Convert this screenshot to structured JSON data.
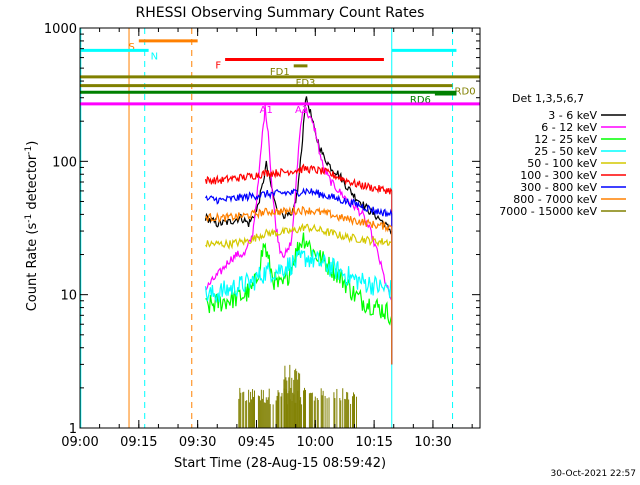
{
  "chart_data": {
    "type": "line",
    "title": "RHESSI Observing Summary Count Rates",
    "xlabel": "Start Time (28-Aug-15 08:59:42)",
    "ylabel_main": "Count Rate (s",
    "ylabel_sup": "-1",
    "ylabel_rest": " detector",
    "ylabel_sup2": "-1",
    "ylabel_end": ")",
    "y_scale": "log",
    "ylim": [
      1,
      1000
    ],
    "xlim_minutes": [
      0,
      102
    ],
    "x_ticks": [
      {
        "m": 0,
        "label": "09:00"
      },
      {
        "m": 15,
        "label": "09:15"
      },
      {
        "m": 30,
        "label": "09:30"
      },
      {
        "m": 45,
        "label": "09:45"
      },
      {
        "m": 60,
        "label": "10:00"
      },
      {
        "m": 75,
        "label": "10:15"
      },
      {
        "m": 90,
        "label": "10:30"
      }
    ],
    "y_ticks": [
      {
        "v": 1,
        "label": "1"
      },
      {
        "v": 10,
        "label": "10"
      },
      {
        "v": 100,
        "label": "100"
      },
      {
        "v": 1000,
        "label": "1000"
      }
    ],
    "legend_title": "Det 1,3,5,6,7",
    "series": [
      {
        "name": "3 - 6 keV",
        "color": "#000000",
        "points": [
          [
            32,
            38
          ],
          [
            35,
            34
          ],
          [
            38,
            35
          ],
          [
            41,
            38
          ],
          [
            43,
            34
          ],
          [
            45,
            42
          ],
          [
            46.5,
            65
          ],
          [
            47.5,
            95
          ],
          [
            48.5,
            70
          ],
          [
            50,
            45
          ],
          [
            52,
            40
          ],
          [
            54,
            38
          ],
          [
            55.5,
            60
          ],
          [
            56.5,
            120
          ],
          [
            57.5,
            300
          ],
          [
            58.5,
            250
          ],
          [
            60,
            160
          ],
          [
            62,
            110
          ],
          [
            64,
            90
          ],
          [
            66,
            80
          ],
          [
            68,
            65
          ],
          [
            70,
            55
          ],
          [
            72,
            48
          ],
          [
            74,
            42
          ],
          [
            76,
            38
          ],
          [
            78,
            33
          ],
          [
            79.5,
            30
          ]
        ]
      },
      {
        "name": "6 - 12 keV",
        "color": "#ff00ff",
        "points": [
          [
            32,
            11
          ],
          [
            34,
            13
          ],
          [
            36,
            15
          ],
          [
            38,
            18
          ],
          [
            40,
            20
          ],
          [
            42,
            20
          ],
          [
            44,
            28
          ],
          [
            45.5,
            70
          ],
          [
            46.5,
            160
          ],
          [
            47.2,
            250
          ],
          [
            48,
            170
          ],
          [
            49,
            60
          ],
          [
            50,
            32
          ],
          [
            51,
            22
          ],
          [
            52,
            20
          ],
          [
            53,
            21
          ],
          [
            54,
            26
          ],
          [
            55,
            60
          ],
          [
            56,
            160
          ],
          [
            57,
            260
          ],
          [
            58,
            230
          ],
          [
            59,
            200
          ],
          [
            60,
            170
          ],
          [
            61,
            120
          ],
          [
            62,
            90
          ],
          [
            64,
            70
          ],
          [
            66,
            60
          ],
          [
            68,
            52
          ],
          [
            70,
            46
          ],
          [
            72,
            40
          ],
          [
            74,
            30
          ],
          [
            76,
            20
          ],
          [
            78,
            12
          ],
          [
            79.5,
            9
          ]
        ]
      },
      {
        "name": "12 - 25 keV",
        "color": "#00ff00",
        "points": [
          [
            32,
            8
          ],
          [
            34,
            8.5
          ],
          [
            36,
            8.8
          ],
          [
            38,
            9.2
          ],
          [
            40,
            9.5
          ],
          [
            42,
            10
          ],
          [
            44,
            11
          ],
          [
            45,
            13
          ],
          [
            46,
            18
          ],
          [
            47,
            24
          ],
          [
            48,
            18
          ],
          [
            49,
            14
          ],
          [
            50,
            12
          ],
          [
            51,
            11.5
          ],
          [
            52,
            12
          ],
          [
            53,
            14
          ],
          [
            54,
            17
          ],
          [
            55,
            20
          ],
          [
            56,
            24
          ],
          [
            57,
            27
          ],
          [
            58,
            25
          ],
          [
            59,
            22
          ],
          [
            60,
            20
          ],
          [
            62,
            18
          ],
          [
            64,
            16
          ],
          [
            66,
            14
          ],
          [
            68,
            12
          ],
          [
            70,
            10
          ],
          [
            72,
            9
          ],
          [
            74,
            8.5
          ],
          [
            76,
            8
          ],
          [
            78,
            7.5
          ],
          [
            79.5,
            7
          ]
        ]
      },
      {
        "name": "25 - 50 keV",
        "color": "#00ffff",
        "points": [
          [
            32,
            10
          ],
          [
            34,
            10
          ],
          [
            36,
            10.5
          ],
          [
            38,
            11
          ],
          [
            40,
            11.5
          ],
          [
            42,
            12
          ],
          [
            44,
            12.5
          ],
          [
            46,
            14
          ],
          [
            48,
            15
          ],
          [
            50,
            15
          ],
          [
            52,
            16
          ],
          [
            54,
            17
          ],
          [
            56,
            18
          ],
          [
            57,
            19
          ],
          [
            58,
            19
          ],
          [
            60,
            18
          ],
          [
            62,
            17
          ],
          [
            64,
            16
          ],
          [
            66,
            15
          ],
          [
            68,
            14
          ],
          [
            70,
            13
          ],
          [
            72,
            12.5
          ],
          [
            74,
            12
          ],
          [
            76,
            11.5
          ],
          [
            78,
            11
          ],
          [
            79.5,
            11
          ]
        ]
      },
      {
        "name": "50 - 100 keV",
        "color": "#d4c800",
        "points": [
          [
            32,
            24
          ],
          [
            34,
            24
          ],
          [
            36,
            24
          ],
          [
            38,
            24
          ],
          [
            40,
            24.5
          ],
          [
            42,
            25
          ],
          [
            44,
            26
          ],
          [
            46,
            28
          ],
          [
            48,
            29
          ],
          [
            50,
            29
          ],
          [
            52,
            29.5
          ],
          [
            54,
            30
          ],
          [
            56,
            31
          ],
          [
            57,
            32
          ],
          [
            58,
            32
          ],
          [
            60,
            31
          ],
          [
            62,
            30
          ],
          [
            64,
            29
          ],
          [
            66,
            28
          ],
          [
            68,
            27
          ],
          [
            70,
            26.5
          ],
          [
            72,
            26
          ],
          [
            74,
            25.5
          ],
          [
            76,
            25
          ],
          [
            78,
            25
          ],
          [
            79.5,
            24.5
          ]
        ]
      },
      {
        "name": "100 - 300 keV",
        "color": "#ff0000",
        "points": [
          [
            32,
            72
          ],
          [
            34,
            72
          ],
          [
            36,
            72
          ],
          [
            38,
            74
          ],
          [
            40,
            75
          ],
          [
            42,
            76
          ],
          [
            44,
            78
          ],
          [
            46,
            80
          ],
          [
            48,
            82
          ],
          [
            50,
            82
          ],
          [
            52,
            83
          ],
          [
            54,
            85
          ],
          [
            56,
            86
          ],
          [
            57,
            88
          ],
          [
            58,
            88
          ],
          [
            60,
            86
          ],
          [
            62,
            84
          ],
          [
            64,
            80
          ],
          [
            66,
            76
          ],
          [
            68,
            72
          ],
          [
            70,
            68
          ],
          [
            72,
            66
          ],
          [
            74,
            64
          ],
          [
            76,
            62
          ],
          [
            78,
            61
          ],
          [
            79.5,
            60
          ]
        ]
      },
      {
        "name": "300 - 800 keV",
        "color": "#0000ff",
        "points": [
          [
            32,
            52
          ],
          [
            34,
            52
          ],
          [
            36,
            51
          ],
          [
            38,
            52
          ],
          [
            40,
            53
          ],
          [
            42,
            54
          ],
          [
            44,
            55
          ],
          [
            46,
            56
          ],
          [
            48,
            57
          ],
          [
            50,
            57
          ],
          [
            52,
            58
          ],
          [
            54,
            58
          ],
          [
            56,
            59
          ],
          [
            57,
            60
          ],
          [
            58,
            60
          ],
          [
            60,
            58
          ],
          [
            62,
            56
          ],
          [
            64,
            54
          ],
          [
            66,
            52
          ],
          [
            68,
            50
          ],
          [
            70,
            48
          ],
          [
            72,
            46
          ],
          [
            74,
            44
          ],
          [
            76,
            42
          ],
          [
            78,
            41
          ],
          [
            79.5,
            40
          ]
        ]
      },
      {
        "name": "800 - 7000 keV",
        "color": "#ff8000",
        "points": [
          [
            32,
            38
          ],
          [
            34,
            38
          ],
          [
            36,
            37.5
          ],
          [
            38,
            38
          ],
          [
            40,
            38.5
          ],
          [
            42,
            39
          ],
          [
            44,
            40
          ],
          [
            46,
            41
          ],
          [
            48,
            42
          ],
          [
            50,
            42
          ],
          [
            52,
            42
          ],
          [
            54,
            42.5
          ],
          [
            56,
            43
          ],
          [
            57,
            43
          ],
          [
            58,
            43
          ],
          [
            60,
            42
          ],
          [
            62,
            41
          ],
          [
            64,
            40
          ],
          [
            66,
            38
          ],
          [
            68,
            37
          ],
          [
            70,
            36
          ],
          [
            72,
            35
          ],
          [
            74,
            34
          ],
          [
            76,
            33
          ],
          [
            78,
            32.5
          ],
          [
            79.5,
            32
          ]
        ]
      },
      {
        "name": "7000 - 15000 keV",
        "color": "#808000",
        "points": []
      }
    ],
    "olive_bursts": [
      {
        "x0": 40.5,
        "x1": 70.5,
        "lo": 1.0,
        "hi": 2.0
      },
      {
        "x0": 52,
        "x1": 56,
        "lo": 1.0,
        "hi": 3.0
      }
    ],
    "flag_bars": [
      {
        "label": "S",
        "color": "#ff8000",
        "x0": 15,
        "x1": 30,
        "y": 800,
        "label_side": "left"
      },
      {
        "label": "N",
        "color": "#00ffff",
        "x0": 0,
        "x1": 17.5,
        "y": 680,
        "label_side": "right"
      },
      {
        "label": "N",
        "color": "#00ffff",
        "x0": 79.5,
        "x1": 96,
        "y": 680,
        "label_side": "none"
      },
      {
        "label": "F",
        "color": "#ff0000",
        "x0": 37,
        "x1": 77.5,
        "y": 580,
        "label_side": "left"
      },
      {
        "label": "FD1",
        "color": "#808000",
        "x0": 54.5,
        "x1": 58,
        "y": 520,
        "label_side": "left"
      },
      {
        "label": "FD3",
        "color": "#808000",
        "x0": 0,
        "x1": 102,
        "y": 430,
        "label_side": "mid",
        "label_x": 57.5
      },
      {
        "label": "RD0",
        "color": "#808000",
        "x0": 0,
        "x1": 95,
        "y": 370,
        "label_side": "right"
      },
      {
        "label": "RD6",
        "color": "#008000",
        "x0": 0,
        "x1": 96,
        "y": 330,
        "label_side": "none"
      },
      {
        "label": "RD6",
        "color": "#008000",
        "x0": 90.5,
        "x1": 96,
        "y": 320,
        "label_side": "left"
      },
      {
        "label": "A1",
        "color": "#ff00ff",
        "x0": 0,
        "x1": 102,
        "y": 270,
        "label_side": "mid",
        "label_x": 47.5
      },
      {
        "label": "A1",
        "color": "#ff00ff",
        "x0": 0,
        "x1": 0,
        "y": 270,
        "label_side": "mid",
        "label_x": 56.5
      }
    ],
    "vlines": [
      {
        "x": 0.2,
        "color": "#00ffff",
        "style": "solid"
      },
      {
        "x": 12.5,
        "color": "#ff8000",
        "style": "solid"
      },
      {
        "x": 16.5,
        "color": "#00ffff",
        "style": "dashed"
      },
      {
        "x": 28.5,
        "color": "#ff8000",
        "style": "dashed"
      },
      {
        "x": 79.5,
        "color": "#00ffff",
        "style": "solid"
      },
      {
        "x": 95,
        "color": "#00ffff",
        "style": "dashed"
      }
    ],
    "footer_date": "30-Oct-2021 22:57"
  }
}
